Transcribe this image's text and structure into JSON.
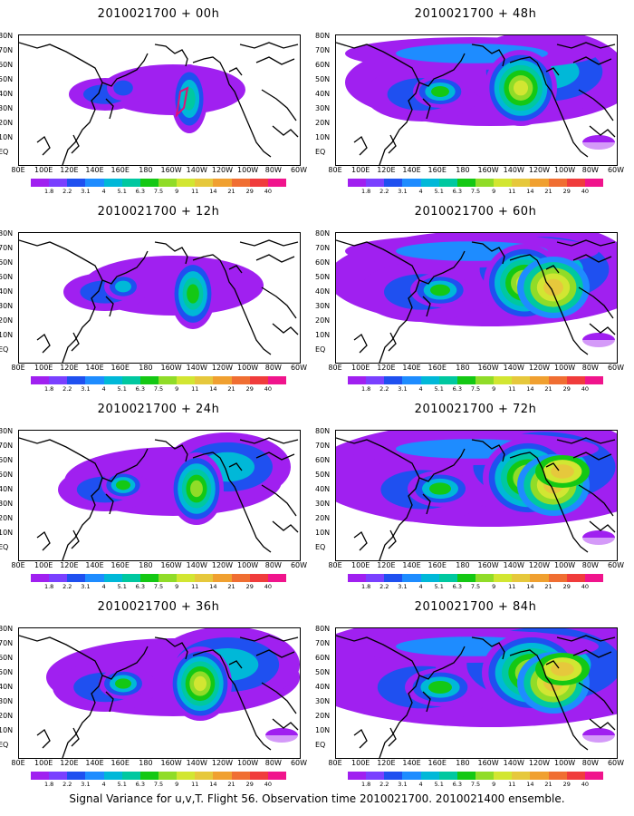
{
  "caption": "Signal Variance for u,v,T. Flight 56. Observation time 2010021700. 2010021400 ensemble.",
  "lat_labels": [
    "80N",
    "70N",
    "60N",
    "50N",
    "40N",
    "30N",
    "20N",
    "10N",
    "EQ"
  ],
  "lon_labels": [
    "80E",
    "100E",
    "120E",
    "140E",
    "160E",
    "180",
    "160W",
    "140W",
    "120W",
    "100W",
    "80W",
    "60W"
  ],
  "colorbar": {
    "levels": [
      "1.8",
      "2.2",
      "3.1",
      "4",
      "5.1",
      "6.3",
      "7.5",
      "9",
      "11",
      "14",
      "21",
      "29",
      "40"
    ],
    "colors": [
      "#a020f0",
      "#7a40ff",
      "#1f50f0",
      "#1e8cff",
      "#00b8d8",
      "#00c8a0",
      "#14c814",
      "#90dc28",
      "#d2e632",
      "#e6c83c",
      "#f0a030",
      "#f06e32",
      "#f03c3c",
      "#f0148c"
    ]
  },
  "panels": [
    {
      "title": "2010021700 + 00h",
      "intensity": 0
    },
    {
      "title": "2010021700 + 48h",
      "intensity": 4
    },
    {
      "title": "2010021700 + 12h",
      "intensity": 1
    },
    {
      "title": "2010021700 + 60h",
      "intensity": 5
    },
    {
      "title": "2010021700 + 24h",
      "intensity": 2
    },
    {
      "title": "2010021700 + 72h",
      "intensity": 6
    },
    {
      "title": "2010021700 + 36h",
      "intensity": 3
    },
    {
      "title": "2010021700 + 84h",
      "intensity": 7
    }
  ]
}
